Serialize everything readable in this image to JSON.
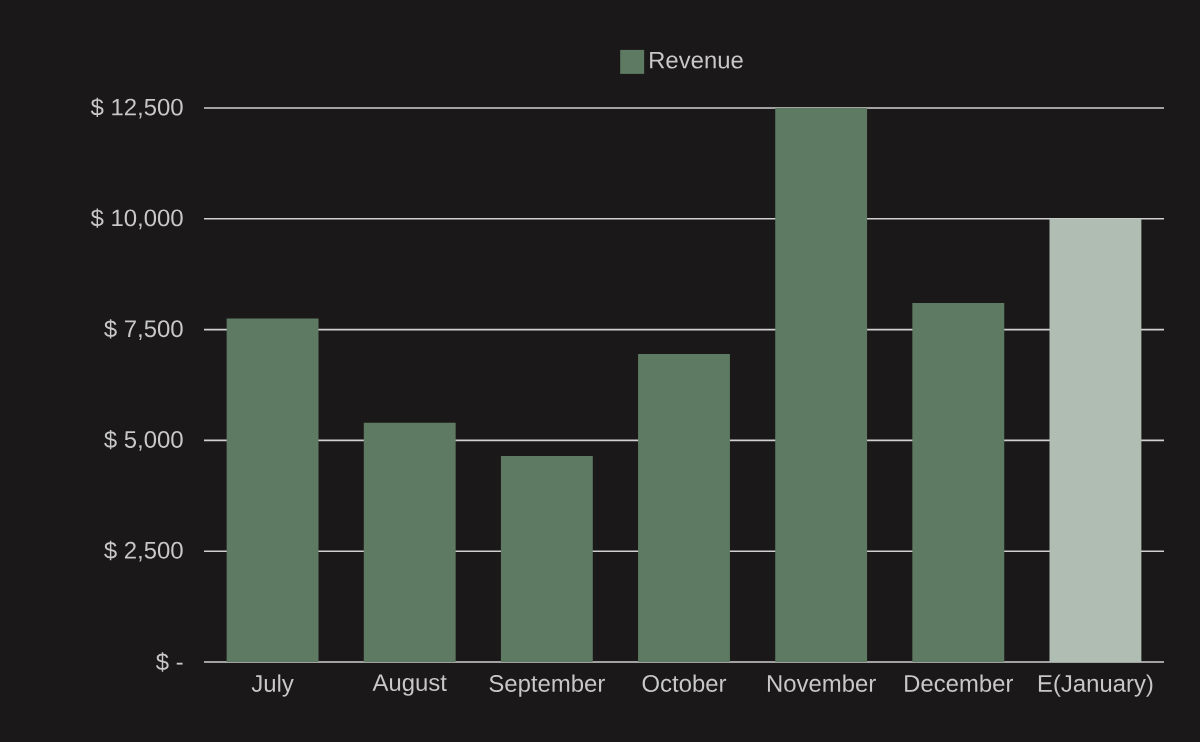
{
  "chart_data": {
    "type": "bar",
    "categories": [
      "July",
      "August",
      "September",
      "October",
      "November",
      "December",
      "E(January)"
    ],
    "series": [
      {
        "name": "Revenue",
        "color": "#5e7a62",
        "colors": [
          "#5e7a62",
          "#5e7a62",
          "#5e7a62",
          "#5e7a62",
          "#5e7a62",
          "#5e7a62",
          "#b0bdb2"
        ],
        "values": [
          7750,
          5400,
          4650,
          6950,
          12500,
          8100,
          10000
        ]
      }
    ],
    "ylim": [
      0,
      12500
    ],
    "yticks": [
      {
        "value": 0,
        "label": "$ -"
      },
      {
        "value": 2500,
        "label": "$ 2,500"
      },
      {
        "value": 5000,
        "label": "$ 5,000"
      },
      {
        "value": 7500,
        "label": "$ 7,500"
      },
      {
        "value": 10000,
        "label": "$ 10,000"
      },
      {
        "value": 12500,
        "label": "$ 12,500"
      }
    ],
    "grid": "y",
    "legend": "top"
  }
}
